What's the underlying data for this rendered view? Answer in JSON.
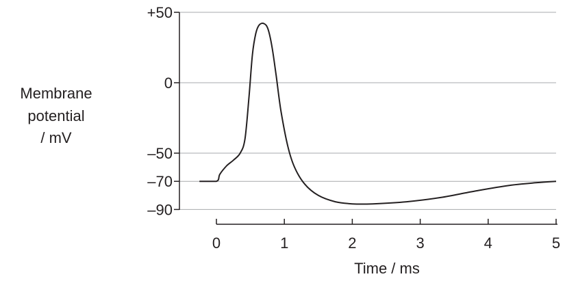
{
  "chart_data": {
    "type": "line",
    "title": "",
    "xlabel": "Time / ms",
    "ylabel_lines": [
      "Membrane",
      "potential",
      "/ mV"
    ],
    "xlim": [
      -0.25,
      5
    ],
    "ylim": [
      -90,
      50
    ],
    "x_ticks": [
      0,
      1,
      2,
      3,
      4,
      5
    ],
    "x_tick_labels": [
      "0",
      "1",
      "2",
      "3",
      "4",
      "5"
    ],
    "y_ticks": [
      50,
      0,
      -50,
      -70,
      -90
    ],
    "y_tick_labels": [
      "+50",
      "0",
      "–50",
      "–70",
      "–90"
    ],
    "grid": true,
    "series": [
      {
        "points": [
          [
            -0.25,
            -70
          ],
          [
            0,
            -70
          ],
          [
            0.05,
            -65
          ],
          [
            0.15,
            -59
          ],
          [
            0.25,
            -55
          ],
          [
            0.35,
            -50
          ],
          [
            0.42,
            -40
          ],
          [
            0.48,
            -10
          ],
          [
            0.53,
            20
          ],
          [
            0.58,
            35
          ],
          [
            0.63,
            41
          ],
          [
            0.7,
            42
          ],
          [
            0.76,
            38
          ],
          [
            0.82,
            25
          ],
          [
            0.88,
            5
          ],
          [
            0.95,
            -20
          ],
          [
            1.05,
            -45
          ],
          [
            1.15,
            -60
          ],
          [
            1.3,
            -72
          ],
          [
            1.5,
            -80
          ],
          [
            1.75,
            -84.5
          ],
          [
            2.0,
            -86
          ],
          [
            2.3,
            -86
          ],
          [
            2.8,
            -84.5
          ],
          [
            3.3,
            -81.5
          ],
          [
            3.8,
            -77
          ],
          [
            4.3,
            -73
          ],
          [
            4.7,
            -71
          ],
          [
            5.0,
            -70
          ]
        ]
      }
    ]
  }
}
